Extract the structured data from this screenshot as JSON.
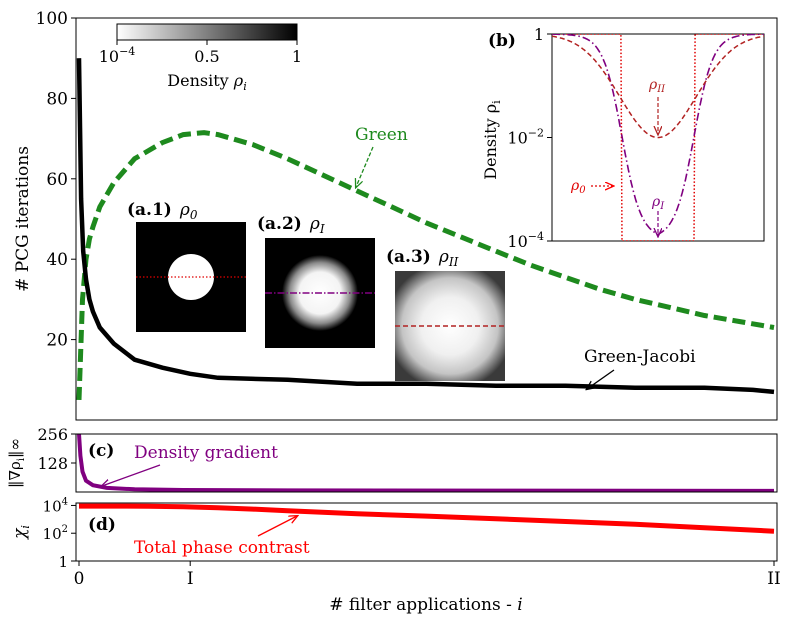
{
  "colors": {
    "green": "#1e8a1e",
    "black": "#000000",
    "purple": "#800080",
    "red": "#ff0000",
    "darkred": "#b22222",
    "dotred": "#e00000"
  },
  "chart_data": [
    {
      "id": "main",
      "type": "line",
      "ylabel": "# PCG iterations",
      "ylim": [
        0,
        100
      ],
      "yticks": [
        20,
        40,
        60,
        80,
        100
      ],
      "xlim": [
        0,
        1
      ],
      "series": [
        {
          "name": "Green",
          "style": "dashed",
          "x": [
            0,
            0.005,
            0.01,
            0.015,
            0.02,
            0.03,
            0.05,
            0.08,
            0.12,
            0.15,
            0.18,
            0.2,
            0.25,
            0.3,
            0.35,
            0.4,
            0.45,
            0.5,
            0.55,
            0.6,
            0.65,
            0.7,
            0.75,
            0.8,
            0.85,
            0.9,
            0.95,
            1.0
          ],
          "y": [
            5,
            30,
            40,
            45,
            48,
            53,
            59,
            65,
            69,
            71,
            71.5,
            71,
            68.5,
            65,
            61,
            57,
            53,
            49,
            45.5,
            42,
            38.5,
            35.5,
            32.5,
            30,
            28,
            26,
            24.5,
            23
          ]
        },
        {
          "name": "Green-Jacobi",
          "style": "solid",
          "x": [
            0,
            0.003,
            0.006,
            0.01,
            0.015,
            0.02,
            0.03,
            0.05,
            0.08,
            0.12,
            0.16,
            0.2,
            0.3,
            0.4,
            0.5,
            0.6,
            0.7,
            0.8,
            0.9,
            0.97,
            1.0
          ],
          "y": [
            90,
            55,
            42,
            35,
            30,
            27,
            23,
            19,
            15,
            13,
            11.5,
            10.5,
            10,
            9,
            9,
            8.5,
            8.5,
            8,
            8,
            7.5,
            7
          ]
        }
      ],
      "annotations": [
        {
          "text": "Green",
          "target": [
            0.41,
            57
          ]
        },
        {
          "text": "Green-Jacobi",
          "target": [
            0.75,
            8.5
          ]
        }
      ],
      "images": [
        {
          "label": "(a.1)",
          "symbol": "ρ",
          "sub": "0"
        },
        {
          "label": "(a.2)",
          "symbol": "ρ",
          "sub": "I"
        },
        {
          "label": "(a.3)",
          "symbol": "ρ",
          "sub": "II"
        }
      ],
      "colorbar": {
        "label": "Density",
        "symbol": "ρ",
        "sub": "i",
        "ticks": [
          {
            "base": "10",
            "exp": "−4",
            "value": 0
          },
          {
            "text": "0.5",
            "value": 0.5
          },
          {
            "text": "1",
            "value": 1
          }
        ]
      }
    },
    {
      "id": "inset_b",
      "type": "line",
      "label": "(b)",
      "ylabel": "Density ρ",
      "ylabel_sub": "i",
      "yscale": "log",
      "ylim": [
        0.0001,
        1
      ],
      "yticks": [
        {
          "base": "1",
          "value": 1
        },
        {
          "base": "10",
          "exp": "−2",
          "value": 0.01
        },
        {
          "base": "10",
          "exp": "−4",
          "value": 0.0001
        }
      ],
      "xlim": [
        -1,
        1
      ],
      "series": [
        {
          "name": "ρ0",
          "symbol": "ρ",
          "sub": "0",
          "style": "dotted",
          "radius": 0.35,
          "inside": 0.0001,
          "outside": 1
        },
        {
          "name": "ρI",
          "symbol": "ρ",
          "sub": "I",
          "style": "dashdot",
          "inside": 0.00011,
          "outside": 1,
          "radius": 0.34,
          "width": 0.09
        },
        {
          "name": "ρII",
          "symbol": "ρ",
          "sub": "II",
          "style": "dashed",
          "center": 0.01,
          "outside": 1,
          "sigma": 0.36
        }
      ]
    },
    {
      "id": "panel_c",
      "type": "line",
      "label": "(c)",
      "ylabel": "‖∇ρ",
      "ylabel_sub": "i",
      "ylabel_end": "‖∞",
      "ylim": [
        0,
        256
      ],
      "yticks": [
        128,
        256
      ],
      "series": [
        {
          "name": "Density gradient",
          "x": [
            0,
            0.002,
            0.005,
            0.01,
            0.02,
            0.04,
            0.08,
            0.15,
            0.3,
            0.6,
            1.0
          ],
          "y": [
            256,
            160,
            90,
            50,
            30,
            18,
            12,
            9,
            7,
            6,
            5
          ]
        }
      ],
      "annotations": [
        {
          "text": "Density gradient",
          "target": [
            0.03,
            18
          ]
        }
      ]
    },
    {
      "id": "panel_d",
      "type": "line",
      "label": "(d)",
      "ylabel": "χ",
      "ylabel_sub": "i",
      "yscale": "log",
      "ylim": [
        1,
        15000
      ],
      "yticks": [
        {
          "base": "1",
          "value": 1
        },
        {
          "base": "10",
          "exp": "2",
          "value": 100
        },
        {
          "base": "10",
          "exp": "4",
          "value": 10000
        }
      ],
      "series": [
        {
          "name": "Total phase contrast",
          "x": [
            0,
            0.05,
            0.1,
            0.15,
            0.2,
            0.25,
            0.3,
            0.35,
            0.4,
            0.5,
            0.6,
            0.7,
            0.8,
            0.9,
            1.0
          ],
          "y": [
            9000,
            9000,
            8700,
            8000,
            6800,
            5500,
            4200,
            3200,
            2500,
            1700,
            1100,
            700,
            450,
            250,
            140
          ]
        }
      ],
      "annotations": [
        {
          "text": "Total phase contrast",
          "target": [
            0.32,
            4000
          ]
        }
      ]
    }
  ],
  "xaxis": {
    "label": "# filter applications - ",
    "label_var": "i",
    "ticks": [
      {
        "text": "0",
        "value": 0
      },
      {
        "text": "I",
        "value": 0.16
      },
      {
        "text": "II",
        "value": 1
      }
    ]
  }
}
